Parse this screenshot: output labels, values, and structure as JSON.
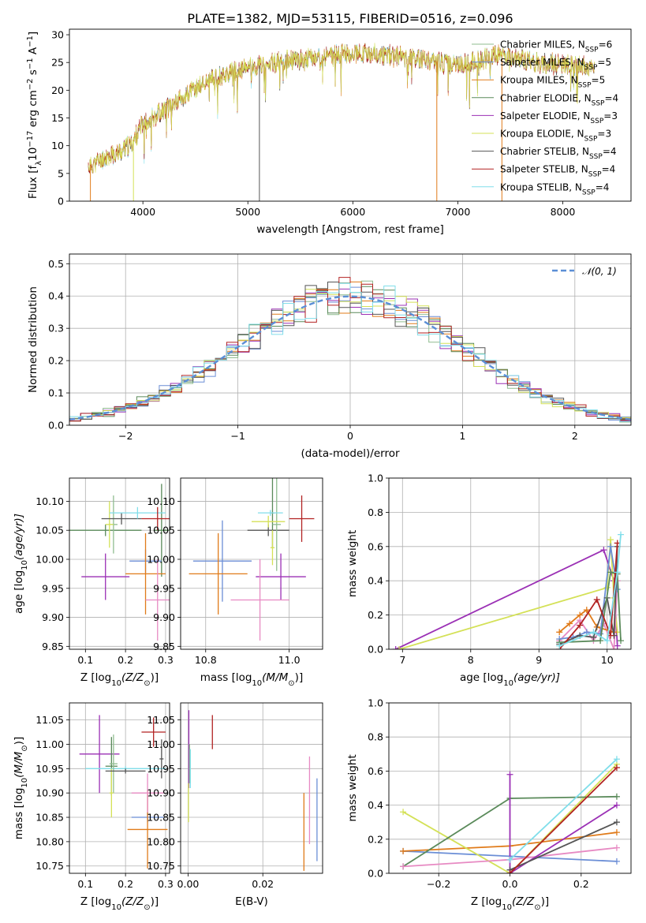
{
  "figure_title": "PLATE=1382, MJD=53115, FIBERID=0516, z=0.096",
  "colors": {
    "chabrier_miles": "#8fbc8f",
    "salpeter_miles": "#6b8ed6",
    "kroupa_miles": "#e07b1a",
    "chabrier_elodie": "#5a8a5a",
    "salpeter_elodie": "#9b30b5",
    "kroupa_elodie": "#d4e157",
    "chabrier_stelib": "#555555",
    "salpeter_stelib": "#b22222",
    "kroupa_stelib": "#80deea",
    "pink": "#e78ac3",
    "gauss": "#5b8fd6"
  },
  "chart_data": [
    {
      "id": "spectrum",
      "type": "line",
      "xlabel": "wavelength [Angstrom, rest frame]",
      "ylabel_parts": [
        "Flux [f",
        "λ",
        "10",
        "−17",
        " erg cm",
        "−2",
        " s",
        "−1",
        " A",
        "−1",
        "]"
      ],
      "xlim": [
        3300,
        8650
      ],
      "ylim": [
        0,
        31
      ],
      "xticks": [
        4000,
        5000,
        6000,
        7000,
        8000
      ],
      "yticks": [
        0,
        5,
        10,
        15,
        20,
        25,
        30
      ],
      "legend": [
        {
          "label": "Chabrier MILES, N",
          "sub": "SSP",
          "val": "=6",
          "color": "#8fbc8f"
        },
        {
          "label": "Salpeter MILES, N",
          "sub": "SSP",
          "val": "=5",
          "color": "#6b8ed6"
        },
        {
          "label": "Kroupa MILES, N",
          "sub": "SSP",
          "val": "=5",
          "color": "#e07b1a"
        },
        {
          "label": "Chabrier ELODIE, N",
          "sub": "SSP",
          "val": "=4",
          "color": "#5a8a5a"
        },
        {
          "label": "Salpeter ELODIE, N",
          "sub": "SSP",
          "val": "=3",
          "color": "#9b30b5"
        },
        {
          "label": "Kroupa ELODIE, N",
          "sub": "SSP",
          "val": "=3",
          "color": "#d4e157"
        },
        {
          "label": "Chabrier STELIB, N",
          "sub": "SSP",
          "val": "=4",
          "color": "#555555"
        },
        {
          "label": "Salpeter STELIB, N",
          "sub": "SSP",
          "val": "=4",
          "color": "#b22222"
        },
        {
          "label": "Kroupa STELIB, N",
          "sub": "SSP",
          "val": "=4",
          "color": "#80deea"
        }
      ],
      "continuum": [
        [
          3480,
          6.2
        ],
        [
          3650,
          8.0
        ],
        [
          3800,
          9.0
        ],
        [
          3900,
          10.5
        ],
        [
          4000,
          14.0
        ],
        [
          4200,
          16.5
        ],
        [
          4400,
          19.0
        ],
        [
          4600,
          21.5
        ],
        [
          4800,
          23.0
        ],
        [
          5000,
          24.0
        ],
        [
          5200,
          24.8
        ],
        [
          5500,
          25.5
        ],
        [
          5800,
          26.2
        ],
        [
          6000,
          26.8
        ],
        [
          6200,
          26.5
        ],
        [
          6500,
          26.0
        ],
        [
          6800,
          25.2
        ],
        [
          7000,
          24.5
        ],
        [
          7200,
          25.2
        ],
        [
          7400,
          26.5
        ],
        [
          7600,
          25.5
        ],
        [
          7800,
          24.8
        ],
        [
          8000,
          24.6
        ],
        [
          8300,
          24.2
        ]
      ]
    },
    {
      "id": "residuals",
      "type": "line",
      "xlabel": "(data-model)/error",
      "ylabel": "Normed distribution",
      "xlim": [
        -2.5,
        2.5
      ],
      "ylim": [
        0,
        0.53
      ],
      "xticks": [
        -2,
        -1,
        0,
        1,
        2
      ],
      "yticks": [
        0.0,
        0.1,
        0.2,
        0.3,
        0.4,
        0.5
      ],
      "legend": [
        {
          "label": "𝒩(0, 1)",
          "color": "#5b8fd6"
        }
      ],
      "bin_width": 0.1
    },
    {
      "id": "age_vs_z",
      "type": "scatter",
      "xlabel": "Z [log",
      "xlabel_sub": "10",
      "xlabel_rest": "(Z/Z",
      "xlabel_end": ")]",
      "ylabel": "age  [log",
      "ylabel_sub": "10",
      "ylabel_rest": "(age/yr)]",
      "xlim": [
        0.06,
        0.31
      ],
      "ylim": [
        9.845,
        10.14
      ],
      "xticks": [
        0.1,
        0.2,
        0.3
      ],
      "yticks": [
        9.85,
        9.9,
        9.95,
        10.0,
        10.05,
        10.1
      ],
      "points": [
        {
          "x": 0.29,
          "y": 10.05,
          "xe": 0.02,
          "ye": 0.08,
          "color": "#5a8a5a"
        },
        {
          "x": 0.15,
          "y": 10.05,
          "xe": 0.09,
          "ye": 0.01,
          "color": "#5a8a5a"
        },
        {
          "x": 0.17,
          "y": 10.06,
          "xe": 0.01,
          "ye": 0.05,
          "color": "#8fbc8f"
        },
        {
          "x": 0.16,
          "y": 10.06,
          "xe": 0.01,
          "ye": 0.04,
          "color": "#d4e157"
        },
        {
          "x": 0.19,
          "y": 10.07,
          "xe": 0.05,
          "ye": 0.01,
          "color": "#555555"
        },
        {
          "x": 0.23,
          "y": 10.08,
          "xe": 0.07,
          "ye": 0.01,
          "color": "#80deea"
        },
        {
          "x": 0.28,
          "y": 10.07,
          "xe": 0.04,
          "ye": 0.02,
          "color": "#b22222"
        },
        {
          "x": 0.15,
          "y": 9.97,
          "xe": 0.06,
          "ye": 0.04,
          "color": "#9b30b5"
        },
        {
          "x": 0.25,
          "y": 9.997,
          "xe": 0.04,
          "ye": 0.02,
          "color": "#6b8ed6"
        },
        {
          "x": 0.25,
          "y": 9.975,
          "xe": 0.05,
          "ye": 0.07,
          "color": "#e07b1a"
        },
        {
          "x": 0.28,
          "y": 9.93,
          "xe": 0.03,
          "ye": 0.07,
          "color": "#e78ac3"
        }
      ]
    },
    {
      "id": "age_vs_mass",
      "type": "scatter",
      "xlabel": "mass [log",
      "xlabel_sub": "10",
      "xlabel_rest": "(M/M",
      "xlabel_end": ")]",
      "xlim": [
        10.74,
        11.08
      ],
      "ylim": [
        9.845,
        10.14
      ],
      "xticks": [
        10.8,
        11.0
      ],
      "yticks": [
        9.85,
        9.9,
        9.95,
        10.0,
        10.05,
        10.1
      ],
      "points": [
        {
          "x": 10.96,
          "y": 10.08,
          "xe": 0.005,
          "ye": 0.06,
          "color": "#5a8a5a"
        },
        {
          "x": 10.95,
          "y": 10.05,
          "xe": 0.05,
          "ye": 0.01,
          "color": "#555555"
        },
        {
          "x": 10.97,
          "y": 10.06,
          "xe": 0.01,
          "ye": 0.08,
          "color": "#8fbc8f"
        },
        {
          "x": 10.95,
          "y": 10.065,
          "xe": 0.04,
          "ye": 0.01,
          "color": "#d4e157"
        },
        {
          "x": 10.955,
          "y": 10.08,
          "xe": 0.03,
          "ye": 0.005,
          "color": "#80deea"
        },
        {
          "x": 11.03,
          "y": 10.07,
          "xe": 0.03,
          "ye": 0.04,
          "color": "#b22222"
        },
        {
          "x": 10.98,
          "y": 9.97,
          "xe": 0.06,
          "ye": 0.04,
          "color": "#9b30b5"
        },
        {
          "x": 10.84,
          "y": 9.997,
          "xe": 0.07,
          "ye": 0.07,
          "color": "#6b8ed6"
        },
        {
          "x": 10.83,
          "y": 9.975,
          "xe": 0.07,
          "ye": 0.07,
          "color": "#e07b1a"
        },
        {
          "x": 10.93,
          "y": 9.93,
          "xe": 0.07,
          "ye": 0.07,
          "color": "#e78ac3"
        },
        {
          "x": 10.96,
          "y": 10.02,
          "xe": 0.005,
          "ye": 0.03,
          "color": "#d4e157"
        }
      ]
    },
    {
      "id": "weight_vs_age",
      "type": "line",
      "xlabel": "age  [log",
      "xlabel_sub": "10",
      "xlabel_rest": "(age/yr)]",
      "ylabel": "mass weight",
      "xlim": [
        6.8,
        10.35
      ],
      "ylim": [
        0,
        1
      ],
      "xticks": [
        7,
        8,
        9,
        10
      ],
      "yticks": [
        0.0,
        0.2,
        0.4,
        0.6,
        0.8,
        1.0
      ],
      "series": [
        {
          "color": "#9b30b5",
          "x": [
            6.9,
            9.95,
            10.1,
            10.15
          ],
          "y": [
            0.0,
            0.58,
            0.4,
            0.02
          ]
        },
        {
          "color": "#d4e157",
          "x": [
            6.95,
            10.0,
            10.05,
            10.1,
            10.15
          ],
          "y": [
            0.0,
            0.36,
            0.64,
            0.3,
            0.1
          ]
        },
        {
          "color": "#e78ac3",
          "x": [
            9.3,
            9.6,
            9.8,
            9.95,
            10.1,
            10.15
          ],
          "y": [
            0.05,
            0.17,
            0.05,
            0.15,
            0.0,
            0.4
          ]
        },
        {
          "color": "#e07b1a",
          "x": [
            9.3,
            9.45,
            9.6,
            9.7,
            9.85,
            10.1
          ],
          "y": [
            0.1,
            0.15,
            0.2,
            0.23,
            0.13,
            0.1
          ]
        },
        {
          "color": "#6b8ed6",
          "x": [
            9.3,
            9.5,
            9.7,
            9.9,
            10.05,
            10.15
          ],
          "y": [
            0.06,
            0.07,
            0.1,
            0.09,
            0.6,
            0.35
          ]
        },
        {
          "color": "#555555",
          "x": [
            9.3,
            9.6,
            9.8,
            10.0,
            10.1,
            10.15
          ],
          "y": [
            0.03,
            0.08,
            0.07,
            0.3,
            0.08,
            0.6
          ]
        },
        {
          "color": "#5a8a5a",
          "x": [
            9.3,
            9.9,
            10.05,
            10.15,
            10.2
          ],
          "y": [
            0.04,
            0.05,
            0.45,
            0.44,
            0.05
          ]
        },
        {
          "color": "#b22222",
          "x": [
            9.3,
            9.6,
            9.85,
            10.05,
            10.15
          ],
          "y": [
            0.0,
            0.14,
            0.29,
            0.08,
            0.62
          ]
        },
        {
          "color": "#80deea",
          "x": [
            9.3,
            9.8,
            10.0,
            10.15,
            10.2
          ],
          "y": [
            0.02,
            0.1,
            0.05,
            0.45,
            0.67
          ]
        }
      ]
    },
    {
      "id": "mass_vs_z",
      "type": "scatter",
      "xlabel": "Z [log",
      "xlabel_sub": "10",
      "xlabel_rest": "(Z/Z",
      "xlabel_end": ")]",
      "ylabel": "mass [log",
      "ylabel_sub": "10",
      "ylabel_rest": "(M/M",
      "ylabel_end": ")]",
      "xlim": [
        0.06,
        0.31
      ],
      "ylim": [
        10.735,
        11.085
      ],
      "xticks": [
        0.1,
        0.2,
        0.3
      ],
      "yticks": [
        10.75,
        10.8,
        10.85,
        10.9,
        10.95,
        11.0,
        11.05
      ],
      "points": [
        {
          "x": 0.135,
          "y": 10.98,
          "xe": 0.05,
          "ye": 0.08,
          "color": "#9b30b5"
        },
        {
          "x": 0.165,
          "y": 10.955,
          "xe": 0.015,
          "ye": 0.06,
          "color": "#5a8a5a"
        },
        {
          "x": 0.2,
          "y": 10.95,
          "xe": 0.1,
          "ye": 0.005,
          "color": "#80deea"
        },
        {
          "x": 0.17,
          "y": 10.96,
          "xe": 0.01,
          "ye": 0.06,
          "color": "#8fbc8f"
        },
        {
          "x": 0.165,
          "y": 10.9,
          "xe": 0.005,
          "ye": 0.05,
          "color": "#d4e157"
        },
        {
          "x": 0.27,
          "y": 11.025,
          "xe": 0.03,
          "ye": 0.03,
          "color": "#b22222"
        },
        {
          "x": 0.29,
          "y": 10.97,
          "xe": 0.005,
          "ye": 0.04,
          "color": "#555555"
        },
        {
          "x": 0.255,
          "y": 10.85,
          "xe": 0.04,
          "ye": 0.01,
          "color": "#6b8ed6"
        },
        {
          "x": 0.255,
          "y": 10.825,
          "xe": 0.05,
          "ye": 0.08,
          "color": "#e07b1a"
        },
        {
          "x": 0.255,
          "y": 10.9,
          "xe": 0.04,
          "ye": 0.04,
          "color": "#e78ac3"
        },
        {
          "x": 0.2,
          "y": 10.945,
          "xe": 0.05,
          "ye": 0.005,
          "color": "#555555"
        }
      ]
    },
    {
      "id": "mass_vs_ebv",
      "type": "scatter",
      "xlabel": "E(B-V)",
      "xlim": [
        -0.002,
        0.036
      ],
      "ylim": [
        10.735,
        11.085
      ],
      "xticks": [
        0.0,
        0.02
      ],
      "yticks": [
        10.75,
        10.8,
        10.85,
        10.9,
        10.95,
        11.0,
        11.05
      ],
      "points": [
        {
          "x": 0.0002,
          "y": 10.99,
          "xe": 0,
          "ye": 0.08,
          "color": "#9b30b5"
        },
        {
          "x": 0.0004,
          "y": 10.96,
          "xe": 0,
          "ye": 0.04,
          "color": "#8fbc8f"
        },
        {
          "x": 0.0006,
          "y": 10.95,
          "xe": 0,
          "ye": 0.04,
          "color": "#80deea"
        },
        {
          "x": 0.0001,
          "y": 10.88,
          "xe": 0,
          "ye": 0.04,
          "color": "#d4e157"
        },
        {
          "x": 0.0065,
          "y": 11.025,
          "xe": 0,
          "ye": 0.035,
          "color": "#b22222"
        },
        {
          "x": 0.031,
          "y": 10.82,
          "xe": 0,
          "ye": 0.08,
          "color": "#e07b1a"
        },
        {
          "x": 0.0325,
          "y": 10.885,
          "xe": 0,
          "ye": 0.09,
          "color": "#e78ac3"
        },
        {
          "x": 0.0345,
          "y": 10.845,
          "xe": 0,
          "ye": 0.085,
          "color": "#6b8ed6"
        }
      ]
    },
    {
      "id": "weight_vs_z",
      "type": "line",
      "xlabel": "Z [log",
      "xlabel_sub": "10",
      "xlabel_rest": "(Z/Z",
      "xlabel_end": ")]",
      "ylabel": "mass weight",
      "xlim": [
        -0.34,
        0.34
      ],
      "ylim": [
        0,
        1
      ],
      "xticks": [
        -0.2,
        0.0,
        0.2
      ],
      "yticks": [
        0.0,
        0.2,
        0.4,
        0.6,
        0.8,
        1.0
      ],
      "series": [
        {
          "color": "#6b8ed6",
          "x": [
            -0.3,
            0.0,
            0.3
          ],
          "y": [
            0.13,
            0.1,
            0.07
          ]
        },
        {
          "color": "#e07b1a",
          "x": [
            -0.3,
            0.0,
            0.3
          ],
          "y": [
            0.13,
            0.16,
            0.24
          ]
        },
        {
          "color": "#d4e157",
          "x": [
            -0.3,
            0.0,
            0.3
          ],
          "y": [
            0.36,
            0.0,
            0.64
          ]
        },
        {
          "color": "#5a8a5a",
          "x": [
            -0.3,
            0.0,
            0.3
          ],
          "y": [
            0.04,
            0.44,
            0.45
          ]
        },
        {
          "color": "#e78ac3",
          "x": [
            -0.3,
            0.0,
            0.3
          ],
          "y": [
            0.04,
            0.08,
            0.15
          ]
        },
        {
          "color": "#9b30b5",
          "x": [
            0.0,
            0.0,
            0.3
          ],
          "y": [
            0.58,
            0.0,
            0.4
          ]
        },
        {
          "color": "#555555",
          "x": [
            0.0,
            0.3
          ],
          "y": [
            0.02,
            0.3
          ]
        },
        {
          "color": "#b22222",
          "x": [
            0.0,
            0.3
          ],
          "y": [
            0.0,
            0.62
          ]
        },
        {
          "color": "#80deea",
          "x": [
            0.0,
            0.3
          ],
          "y": [
            0.08,
            0.67
          ]
        }
      ]
    }
  ]
}
